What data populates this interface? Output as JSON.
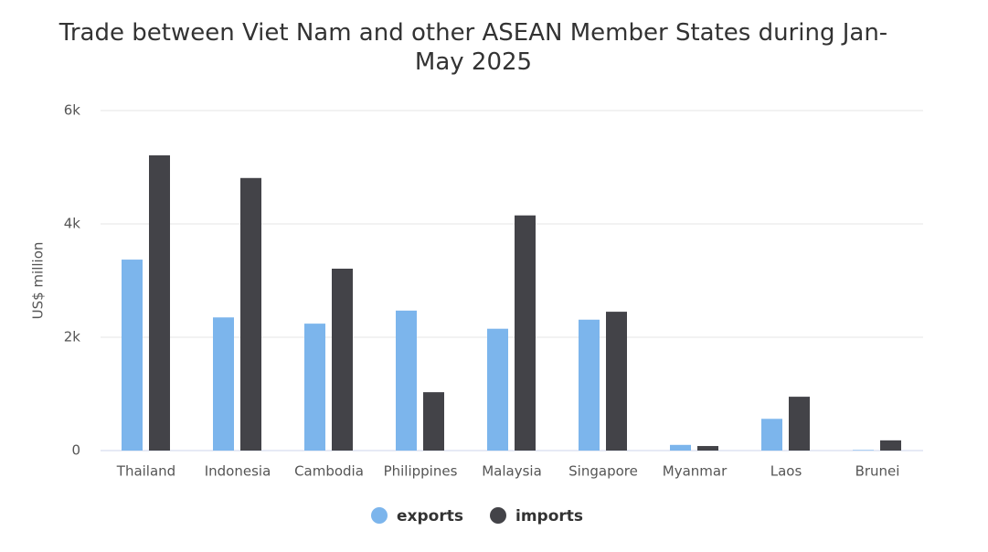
{
  "chart_data": {
    "type": "bar",
    "title": "Trade between Viet Nam and other ASEAN Member States during Jan-May 2025",
    "y_label": "US$ million",
    "categories": [
      "Thailand",
      "Indonesia",
      "Cambodia",
      "Philippines",
      "Malaysia",
      "Singapore",
      "Myanmar",
      "Laos",
      "Brunei"
    ],
    "series": [
      {
        "name": "exports",
        "color": "#7cb5ec",
        "values": [
          3370,
          2350,
          2240,
          2470,
          2150,
          2310,
          100,
          560,
          10
        ]
      },
      {
        "name": "imports",
        "color": "#434348",
        "values": [
          5210,
          4810,
          3210,
          1030,
          4150,
          2450,
          80,
          950,
          180
        ]
      }
    ],
    "ylim": [
      0,
      6000
    ],
    "yticks": [
      0,
      {
        "value": 2000,
        "label": "2k"
      },
      {
        "value": 4000,
        "label": "4k"
      },
      {
        "value": 6000,
        "label": "6k"
      }
    ],
    "grid": true
  }
}
